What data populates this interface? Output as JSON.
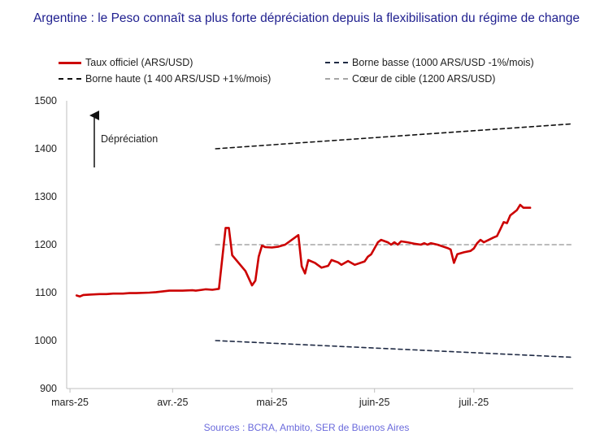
{
  "title": "Argentine : le Peso connaît sa plus forte dépréciation depuis la flexibilisation du régime de change",
  "legend": [
    {
      "label": "Taux officiel (ARS/USD)",
      "color": "#cc0000",
      "style": "solid"
    },
    {
      "label": "Borne basse (1000 ARS/USD -1%/mois)",
      "color": "#1f2a44",
      "style": "dashed"
    },
    {
      "label": "Borne haute (1 400 ARS/USD +1%/mois)",
      "color": "#111111",
      "style": "dashed"
    },
    {
      "label": "Cœur de cible (1200 ARS/USD)",
      "color": "#a6a6a6",
      "style": "dashed"
    }
  ],
  "annotation": "Dépréciation",
  "source": "Sources : BCRA, Ambito, SER de Buenos Aires",
  "chart_data": {
    "type": "line",
    "x_tick_labels": [
      "mars-25",
      "avr.-25",
      "mai-25",
      "juin-25",
      "juil.-25"
    ],
    "xlim": [
      "2025-02-28",
      "2025-07-31"
    ],
    "ylim": [
      900,
      1500
    ],
    "y_ticks": [
      900,
      1000,
      1100,
      1200,
      1300,
      1400,
      1500
    ],
    "grid": false,
    "legend_position": "top",
    "series": [
      {
        "name": "Taux officiel (ARS/USD)",
        "color": "#cc0000",
        "points": [
          [
            "2025-03-03",
            1094
          ],
          [
            "2025-03-04",
            1092
          ],
          [
            "2025-03-05",
            1095
          ],
          [
            "2025-03-07",
            1096
          ],
          [
            "2025-03-10",
            1097
          ],
          [
            "2025-03-12",
            1097
          ],
          [
            "2025-03-14",
            1098
          ],
          [
            "2025-03-17",
            1098
          ],
          [
            "2025-03-19",
            1099
          ],
          [
            "2025-03-21",
            1099
          ],
          [
            "2025-03-25",
            1100
          ],
          [
            "2025-03-27",
            1101
          ],
          [
            "2025-03-31",
            1104
          ],
          [
            "2025-04-02",
            1104
          ],
          [
            "2025-04-04",
            1104
          ],
          [
            "2025-04-07",
            1105
          ],
          [
            "2025-04-08",
            1104
          ],
          [
            "2025-04-10",
            1106
          ],
          [
            "2025-04-11",
            1107
          ],
          [
            "2025-04-13",
            1106
          ],
          [
            "2025-04-15",
            1108
          ],
          [
            "2025-04-17",
            1235
          ],
          [
            "2025-04-18",
            1235
          ],
          [
            "2025-04-19",
            1178
          ],
          [
            "2025-04-23",
            1145
          ],
          [
            "2025-04-25",
            1115
          ],
          [
            "2025-04-26",
            1125
          ],
          [
            "2025-04-27",
            1175
          ],
          [
            "2025-04-28",
            1198
          ],
          [
            "2025-04-29",
            1195
          ],
          [
            "2025-05-01",
            1194
          ],
          [
            "2025-05-03",
            1196
          ],
          [
            "2025-05-05",
            1200
          ],
          [
            "2025-05-09",
            1220
          ],
          [
            "2025-05-10",
            1155
          ],
          [
            "2025-05-11",
            1140
          ],
          [
            "2025-05-12",
            1168
          ],
          [
            "2025-05-14",
            1162
          ],
          [
            "2025-05-16",
            1152
          ],
          [
            "2025-05-18",
            1156
          ],
          [
            "2025-05-19",
            1168
          ],
          [
            "2025-05-21",
            1163
          ],
          [
            "2025-05-22",
            1158
          ],
          [
            "2025-05-24",
            1166
          ],
          [
            "2025-05-26",
            1158
          ],
          [
            "2025-05-29",
            1165
          ],
          [
            "2025-05-30",
            1175
          ],
          [
            "2025-05-31",
            1180
          ],
          [
            "2025-06-02",
            1205
          ],
          [
            "2025-06-03",
            1210
          ],
          [
            "2025-06-05",
            1205
          ],
          [
            "2025-06-06",
            1200
          ],
          [
            "2025-06-07",
            1205
          ],
          [
            "2025-06-08",
            1200
          ],
          [
            "2025-06-09",
            1207
          ],
          [
            "2025-06-11",
            1205
          ],
          [
            "2025-06-13",
            1202
          ],
          [
            "2025-06-15",
            1200
          ],
          [
            "2025-06-16",
            1203
          ],
          [
            "2025-06-17",
            1200
          ],
          [
            "2025-06-18",
            1203
          ],
          [
            "2025-06-20",
            1200
          ],
          [
            "2025-06-23",
            1193
          ],
          [
            "2025-06-24",
            1190
          ],
          [
            "2025-06-25",
            1162
          ],
          [
            "2025-06-26",
            1180
          ],
          [
            "2025-06-28",
            1184
          ],
          [
            "2025-06-30",
            1187
          ],
          [
            "2025-07-01",
            1192
          ],
          [
            "2025-07-02",
            1203
          ],
          [
            "2025-07-03",
            1210
          ],
          [
            "2025-07-04",
            1205
          ],
          [
            "2025-07-07",
            1215
          ],
          [
            "2025-07-08",
            1218
          ],
          [
            "2025-07-09",
            1232
          ],
          [
            "2025-07-10",
            1247
          ],
          [
            "2025-07-11",
            1245
          ],
          [
            "2025-07-12",
            1261
          ],
          [
            "2025-07-14",
            1272
          ],
          [
            "2025-07-15",
            1283
          ],
          [
            "2025-07-16",
            1277
          ],
          [
            "2025-07-18",
            1277
          ]
        ]
      },
      {
        "name": "Borne haute (1 400 ARS/USD +1%/mois)",
        "color": "#111111",
        "points": [
          [
            "2025-04-14",
            1400
          ],
          [
            "2025-07-31",
            1452
          ]
        ]
      },
      {
        "name": "Borne basse (1000 ARS/USD -1%/mois)",
        "color": "#1f2a44",
        "points": [
          [
            "2025-04-14",
            1000
          ],
          [
            "2025-07-31",
            965
          ]
        ]
      },
      {
        "name": "Cœur de cible (1200 ARS/USD)",
        "color": "#a6a6a6",
        "points": [
          [
            "2025-04-14",
            1200
          ],
          [
            "2025-07-31",
            1200
          ]
        ]
      }
    ]
  }
}
